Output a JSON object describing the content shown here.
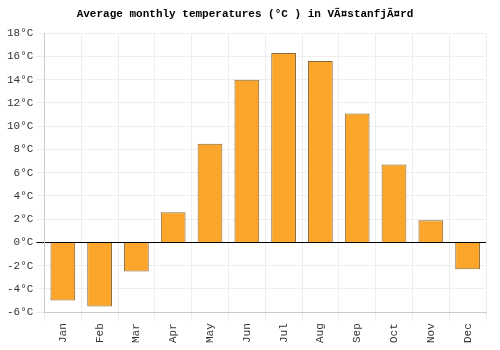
{
  "chart_data": {
    "type": "bar",
    "title": "Average monthly temperatures (°C ) in VÃ¤stanfjÃ¤rd",
    "categories": [
      "Jan",
      "Feb",
      "Mar",
      "Apr",
      "May",
      "Jun",
      "Jul",
      "Aug",
      "Sep",
      "Oct",
      "Nov",
      "Dec"
    ],
    "values": [
      -5.0,
      -5.5,
      -2.5,
      2.6,
      8.5,
      14.0,
      16.3,
      15.6,
      11.1,
      6.7,
      1.9,
      -2.3
    ],
    "color": "#fba62a",
    "ylim": [
      -6,
      18
    ],
    "yticks": [
      {
        "value": -6,
        "label": "-6°C"
      },
      {
        "value": -4,
        "label": "-4°C"
      },
      {
        "value": -2,
        "label": "-2°C"
      },
      {
        "value": 0,
        "label": "0°C"
      },
      {
        "value": 2,
        "label": "2°C"
      },
      {
        "value": 4,
        "label": "4°C"
      },
      {
        "value": 6,
        "label": "6°C"
      },
      {
        "value": 8,
        "label": "8°C"
      },
      {
        "value": 10,
        "label": "10°C"
      },
      {
        "value": 12,
        "label": "12°C"
      },
      {
        "value": 14,
        "label": "14°C"
      },
      {
        "value": 16,
        "label": "16°C"
      },
      {
        "value": 18,
        "label": "18°C"
      }
    ],
    "grid": true
  }
}
